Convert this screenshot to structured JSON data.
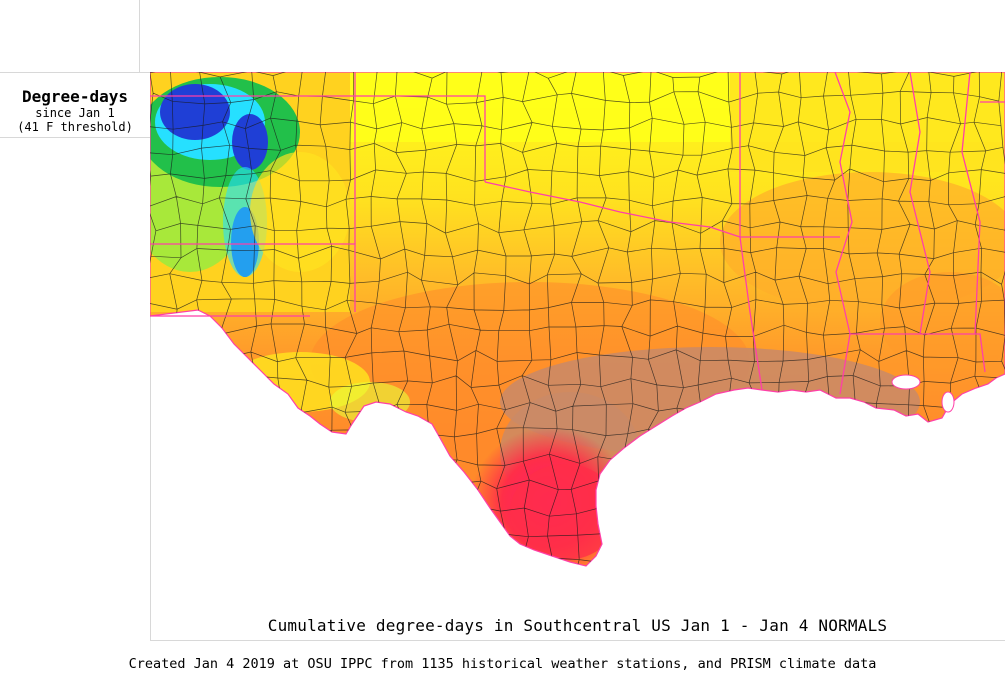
{
  "legend": {
    "title": "Degree-days",
    "subtitle_line1": "since Jan 1",
    "subtitle_line2": "(41 F threshold)"
  },
  "map": {
    "title": "Cumulative degree-days in Southcentral US Jan 1 - Jan 4 NORMALS",
    "region": "Southcentral US",
    "color_scale": [
      "#1f3fd6",
      "#26e0ff",
      "#22c04a",
      "#a8e83a",
      "#ffff1a",
      "#ffd21f",
      "#ffae2a",
      "#ff8a2a",
      "#c98a68",
      "#ff2e48",
      "#ff1f6a"
    ],
    "state_border_color": "#ff3fa8",
    "county_border_color": "#1a1a1a"
  },
  "footer": {
    "credit": "Created Jan 4 2019 at OSU IPPC from 1135 historical weather stations, and PRISM climate data"
  }
}
